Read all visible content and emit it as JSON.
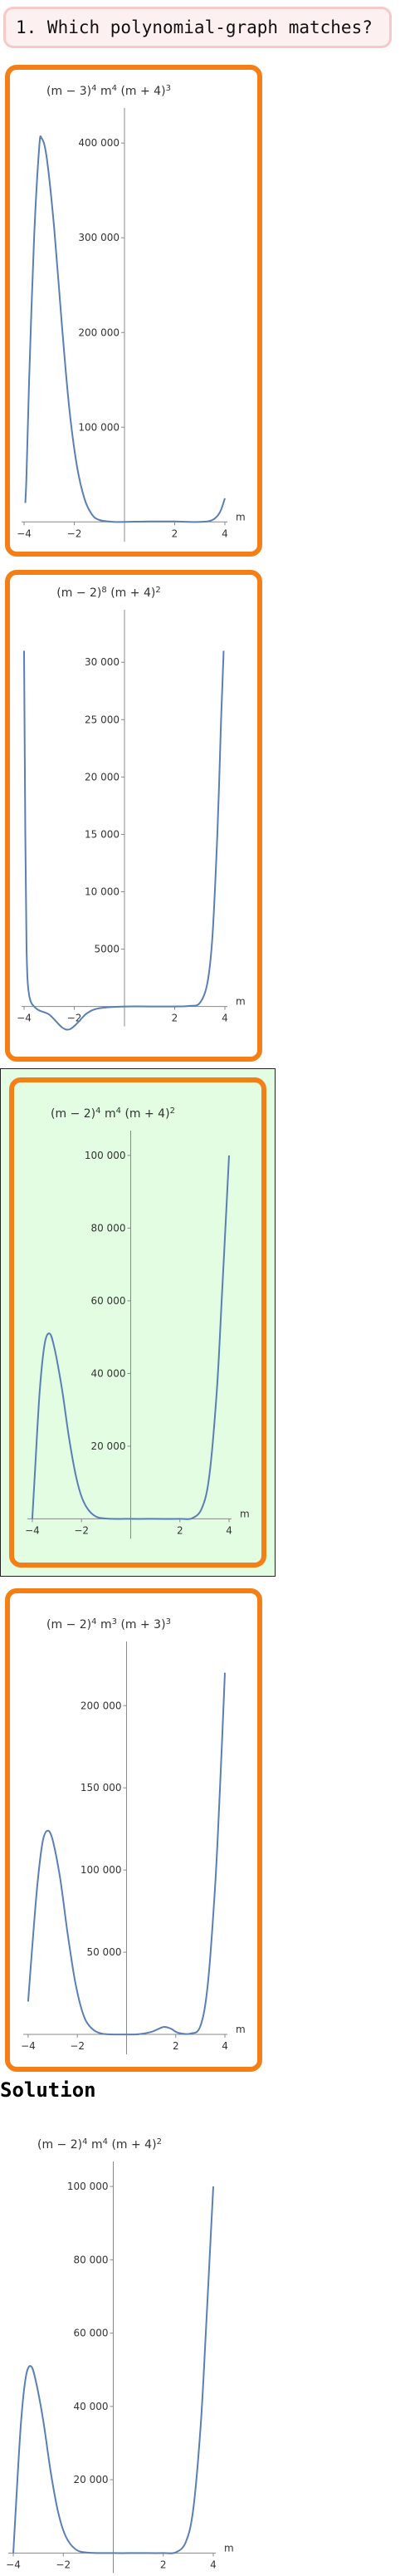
{
  "question": {
    "text": "1. Which polynomial-graph matches?"
  },
  "solution": {
    "heading": "Solution"
  },
  "chart_data": [
    {
      "type": "line",
      "id": "option-1",
      "title_html": "(m − 3)<tspan baseline-shift=\"super\" font-size=\"10\">4</tspan> m<tspan baseline-shift=\"super\" font-size=\"10\">4</tspan> (m + 4)<tspan baseline-shift=\"super\" font-size=\"10\">3</tspan>",
      "title": "(m − 3)^4 m^4 (m + 4)^3",
      "xlabel": "m",
      "xlim": [
        -4.1,
        4.1
      ],
      "ylim": [
        -5000,
        430000
      ],
      "xticks": [
        -4,
        -2,
        2,
        4
      ],
      "yticks": [
        100000,
        200000,
        300000,
        400000
      ],
      "ytick_labels": [
        "100 000",
        "200 000",
        "300 000",
        "400 000"
      ],
      "series": [
        {
          "points": [
            [
              -3.95,
              20000
            ],
            [
              -3.9,
              52000
            ],
            [
              -3.8,
              150000
            ],
            [
              -3.6,
              300000
            ],
            [
              -3.4,
              395000
            ],
            [
              -3.3,
              405000
            ],
            [
              -3.1,
              385000
            ],
            [
              -2.8,
              310000
            ],
            [
              -2.5,
              210000
            ],
            [
              -2.2,
              120000
            ],
            [
              -1.9,
              60000
            ],
            [
              -1.6,
              25000
            ],
            [
              -1.3,
              8000
            ],
            [
              -1.0,
              2000
            ],
            [
              -0.5,
              200
            ],
            [
              0,
              0
            ],
            [
              1,
              500
            ],
            [
              2,
              400
            ],
            [
              3,
              0
            ],
            [
              3.5,
              2000
            ],
            [
              3.8,
              10000
            ],
            [
              4.0,
              25000
            ]
          ]
        }
      ]
    },
    {
      "type": "line",
      "id": "option-2",
      "title_html": "(m − 2)<tspan baseline-shift=\"super\" font-size=\"10\">8</tspan> (m + 4)<tspan baseline-shift=\"super\" font-size=\"10\">2</tspan>",
      "title": "(m − 2)^8 (m + 4)^2",
      "xlabel": "m",
      "xlim": [
        -4.1,
        4.1
      ],
      "ylim": [
        -2200,
        34000
      ],
      "xticks": [
        -4,
        -2,
        2,
        4
      ],
      "yticks": [
        5000,
        10000,
        15000,
        20000,
        25000,
        30000
      ],
      "ytick_labels": [
        "5000",
        "10 000",
        "15 000",
        "20 000",
        "25 000",
        "30 000"
      ],
      "series": [
        {
          "points": [
            [
              -4.0,
              31000
            ],
            [
              -3.95,
              15000
            ],
            [
              -3.9,
              5000
            ],
            [
              -3.8,
              1000
            ],
            [
              -3.5,
              -200
            ],
            [
              -3.0,
              -700
            ],
            [
              -2.5,
              -1800
            ],
            [
              -2.2,
              -2000
            ],
            [
              -1.9,
              -1500
            ],
            [
              -1.5,
              -600
            ],
            [
              -1.0,
              -150
            ],
            [
              0,
              0
            ],
            [
              1,
              0
            ],
            [
              2,
              0
            ],
            [
              2.6,
              50
            ],
            [
              3.0,
              300
            ],
            [
              3.3,
              2000
            ],
            [
              3.5,
              6000
            ],
            [
              3.7,
              15000
            ],
            [
              3.85,
              25000
            ],
            [
              3.95,
              31000
            ]
          ]
        }
      ]
    },
    {
      "type": "line",
      "id": "option-3",
      "title_html": "(m − 2)<tspan baseline-shift=\"super\" font-size=\"10\">4</tspan> m<tspan baseline-shift=\"super\" font-size=\"10\">4</tspan> (m + 4)<tspan baseline-shift=\"super\" font-size=\"10\">2</tspan>",
      "title": "(m − 2)^4 m^4 (m + 4)^2",
      "xlabel": "m",
      "xlim": [
        -4.2,
        4.1
      ],
      "ylim": [
        -1500,
        105000
      ],
      "xticks": [
        -4,
        -2,
        2,
        4
      ],
      "yticks": [
        20000,
        40000,
        60000,
        80000,
        100000
      ],
      "ytick_labels": [
        "20 000",
        "40 000",
        "60 000",
        "80 000",
        "100 000"
      ],
      "series": [
        {
          "points": [
            [
              -4.0,
              0
            ],
            [
              -3.9,
              12000
            ],
            [
              -3.7,
              35000
            ],
            [
              -3.5,
              48000
            ],
            [
              -3.3,
              51000
            ],
            [
              -3.1,
              47000
            ],
            [
              -2.8,
              36000
            ],
            [
              -2.5,
              22000
            ],
            [
              -2.2,
              11000
            ],
            [
              -1.9,
              4500
            ],
            [
              -1.5,
              1000
            ],
            [
              -1.0,
              100
            ],
            [
              0,
              0
            ],
            [
              1,
              0
            ],
            [
              2,
              0
            ],
            [
              2.5,
              200
            ],
            [
              2.9,
              3000
            ],
            [
              3.2,
              12000
            ],
            [
              3.5,
              35000
            ],
            [
              3.7,
              60000
            ],
            [
              3.85,
              80000
            ],
            [
              4.0,
              100000
            ]
          ]
        }
      ]
    },
    {
      "type": "line",
      "id": "option-4",
      "title_html": "(m − 2)<tspan baseline-shift=\"super\" font-size=\"10\">4</tspan> m<tspan baseline-shift=\"super\" font-size=\"10\">3</tspan> (m + 3)<tspan baseline-shift=\"super\" font-size=\"10\">3</tspan>",
      "title": "(m − 2)^4 m^3 (m + 3)^3",
      "xlabel": "m",
      "xlim": [
        -4.2,
        4.1
      ],
      "ylim": [
        -2500,
        235000
      ],
      "xticks": [
        -4,
        -2,
        2,
        4
      ],
      "yticks": [
        50000,
        100000,
        150000,
        200000
      ],
      "ytick_labels": [
        "50 000",
        "100 000",
        "150 000",
        "200 000"
      ],
      "series": [
        {
          "points": [
            [
              -4.0,
              20000
            ],
            [
              -3.8,
              60000
            ],
            [
              -3.6,
              95000
            ],
            [
              -3.4,
              118000
            ],
            [
              -3.2,
              124000
            ],
            [
              -3.0,
              118000
            ],
            [
              -2.7,
              95000
            ],
            [
              -2.4,
              62000
            ],
            [
              -2.1,
              33000
            ],
            [
              -1.8,
              14000
            ],
            [
              -1.5,
              5000
            ],
            [
              -1.0,
              500
            ],
            [
              0,
              0
            ],
            [
              0.5,
              200
            ],
            [
              1.0,
              1500
            ],
            [
              1.5,
              4500
            ],
            [
              1.8,
              3500
            ],
            [
              2.1,
              1000
            ],
            [
              2.6,
              500
            ],
            [
              3.0,
              5000
            ],
            [
              3.3,
              30000
            ],
            [
              3.6,
              90000
            ],
            [
              3.8,
              150000
            ],
            [
              4.0,
              220000
            ]
          ]
        }
      ]
    },
    {
      "type": "line",
      "id": "solution",
      "title_html": "(m − 2)<tspan baseline-shift=\"super\" font-size=\"10\">4</tspan> m<tspan baseline-shift=\"super\" font-size=\"10\">4</tspan> (m + 4)<tspan baseline-shift=\"super\" font-size=\"10\">2</tspan>",
      "title": "(m − 2)^4 m^4 (m + 4)^2",
      "xlabel": "m",
      "xlim": [
        -4.2,
        4.1
      ],
      "ylim": [
        -1500,
        105000
      ],
      "xticks": [
        -4,
        -2,
        2,
        4
      ],
      "yticks": [
        20000,
        40000,
        60000,
        80000,
        100000
      ],
      "ytick_labels": [
        "20 000",
        "40 000",
        "60 000",
        "80 000",
        "100 000"
      ],
      "series": [
        {
          "points": [
            [
              -4.0,
              0
            ],
            [
              -3.9,
              12000
            ],
            [
              -3.7,
              35000
            ],
            [
              -3.5,
              48000
            ],
            [
              -3.3,
              51000
            ],
            [
              -3.1,
              47000
            ],
            [
              -2.8,
              36000
            ],
            [
              -2.5,
              22000
            ],
            [
              -2.2,
              11000
            ],
            [
              -1.9,
              4500
            ],
            [
              -1.5,
              1000
            ],
            [
              -1.0,
              100
            ],
            [
              0,
              0
            ],
            [
              1,
              0
            ],
            [
              2,
              0
            ],
            [
              2.5,
              200
            ],
            [
              2.9,
              3000
            ],
            [
              3.2,
              12000
            ],
            [
              3.5,
              35000
            ],
            [
              3.7,
              60000
            ],
            [
              3.85,
              80000
            ],
            [
              4.0,
              100000
            ]
          ]
        }
      ]
    }
  ]
}
